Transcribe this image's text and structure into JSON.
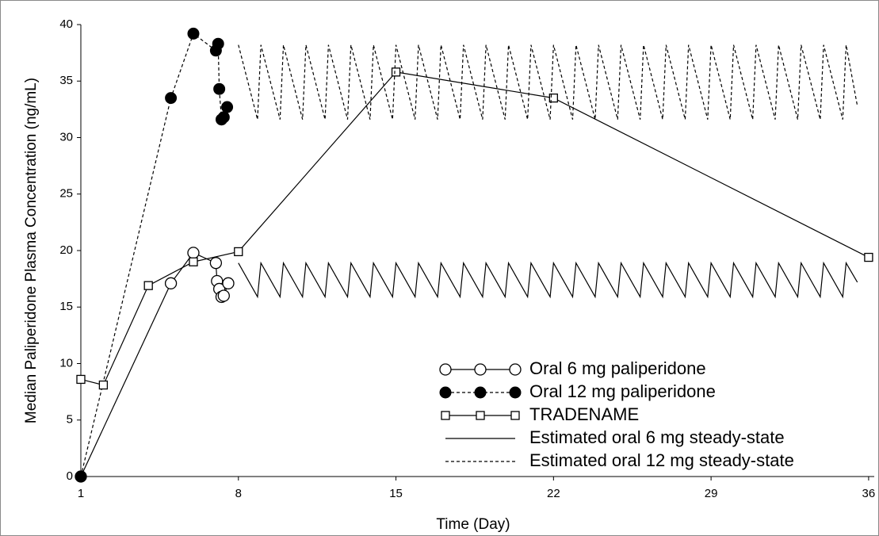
{
  "chart_data": {
    "type": "line",
    "x_label": "Time (Day)",
    "y_label": "Median Paliperidone Plasma Concentration (ng/mL)",
    "xlim": [
      1,
      36.25
    ],
    "ylim": [
      0,
      40
    ],
    "xticks": [
      1,
      8,
      15,
      22,
      29,
      36
    ],
    "yticks": [
      0,
      5,
      10,
      15,
      20,
      25,
      30,
      35,
      40
    ],
    "grid": false,
    "legend": "lower right",
    "series": [
      {
        "name": "Oral 6 mg paliperidone",
        "color": "#000000",
        "marker": "circle-open",
        "dash": "solid",
        "x": [
          1,
          5,
          6,
          7,
          7.05,
          7.15,
          7.25,
          7.35,
          7.55
        ],
        "values": [
          0,
          17.1,
          19.8,
          18.9,
          17.3,
          16.6,
          15.9,
          16.0,
          17.1
        ]
      },
      {
        "name": "Oral 12 mg paliperidone",
        "color": "#000000",
        "marker": "circle-filled",
        "dash": "dashed",
        "x": [
          1,
          5,
          6,
          7,
          7.1,
          7.15,
          7.25,
          7.35,
          7.5
        ],
        "values": [
          0,
          33.5,
          39.2,
          37.7,
          38.3,
          34.3,
          31.6,
          31.8,
          32.7
        ]
      },
      {
        "name": "TRADENAME",
        "color": "#000000",
        "marker": "square-open",
        "dash": "solid",
        "x": [
          1,
          2,
          4,
          6,
          8,
          15,
          22,
          36
        ],
        "values": [
          8.6,
          8.1,
          16.9,
          19.0,
          19.9,
          35.8,
          33.5,
          19.4
        ]
      },
      {
        "name": "Estimated oral 6 mg steady-state",
        "color": "#000000",
        "marker": "none",
        "dash": "solid",
        "x": [
          8,
          8.85,
          9,
          9.85,
          10,
          10.85,
          11,
          11.85,
          12,
          12.85,
          13,
          13.85,
          14,
          14.85,
          15,
          15.85,
          16,
          16.85,
          17,
          17.85,
          18,
          18.85,
          19,
          19.85,
          20,
          20.85,
          21,
          21.85,
          22,
          22.85,
          23,
          23.85,
          24,
          24.85,
          25,
          25.85,
          26,
          26.85,
          27,
          27.85,
          28,
          28.85,
          29,
          29.85,
          30,
          30.85,
          31,
          31.85,
          32,
          32.85,
          33,
          33.85,
          34,
          34.85,
          35,
          35.5
        ],
        "values": [
          18.9,
          15.9,
          18.9,
          15.9,
          18.9,
          15.9,
          18.9,
          15.9,
          18.9,
          15.9,
          18.9,
          15.9,
          18.9,
          15.9,
          18.9,
          15.9,
          18.9,
          15.9,
          18.9,
          15.9,
          18.9,
          15.9,
          18.9,
          15.9,
          18.9,
          15.9,
          18.9,
          15.9,
          18.9,
          15.9,
          18.9,
          15.9,
          18.9,
          15.9,
          18.9,
          15.9,
          18.9,
          15.9,
          18.9,
          15.9,
          18.9,
          15.9,
          18.9,
          15.9,
          18.9,
          15.9,
          18.9,
          15.9,
          18.9,
          15.9,
          18.9,
          15.9,
          18.9,
          15.9,
          18.9,
          17.2
        ]
      },
      {
        "name": "Estimated oral 12 mg steady-state",
        "color": "#000000",
        "marker": "none",
        "dash": "dashed",
        "x": [
          8,
          8.85,
          9,
          9.85,
          10,
          10.85,
          11,
          11.85,
          12,
          12.85,
          13,
          13.85,
          14,
          14.85,
          15,
          15.85,
          16,
          16.85,
          17,
          17.85,
          18,
          18.85,
          19,
          19.85,
          20,
          20.85,
          21,
          21.85,
          22,
          22.85,
          23,
          23.85,
          24,
          24.85,
          25,
          25.85,
          26,
          26.85,
          27,
          27.85,
          28,
          28.85,
          29,
          29.85,
          30,
          30.85,
          31,
          31.85,
          32,
          32.85,
          33,
          33.85,
          34,
          34.85,
          35,
          35.5
        ],
        "values": [
          38.2,
          31.6,
          38.2,
          31.6,
          38.2,
          31.6,
          38.2,
          31.6,
          38.2,
          31.6,
          38.2,
          31.6,
          38.2,
          31.6,
          38.2,
          31.6,
          38.2,
          31.6,
          38.2,
          31.6,
          38.2,
          31.6,
          38.2,
          31.6,
          38.2,
          31.6,
          38.2,
          31.6,
          38.2,
          31.6,
          38.2,
          31.6,
          38.2,
          31.6,
          38.2,
          31.6,
          38.2,
          31.6,
          38.2,
          31.6,
          38.2,
          31.6,
          38.2,
          31.6,
          38.2,
          31.6,
          38.2,
          31.6,
          38.2,
          31.6,
          38.2,
          31.6,
          38.2,
          31.6,
          38.2,
          32.8
        ]
      }
    ]
  }
}
